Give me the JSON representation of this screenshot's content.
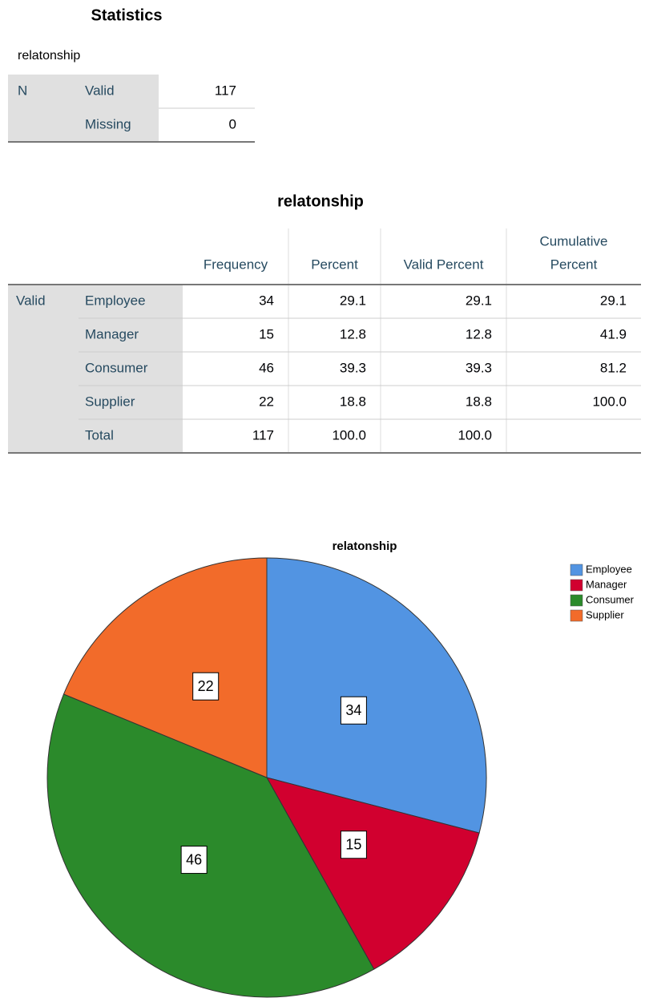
{
  "statistics": {
    "title": "Statistics",
    "variable": "relatonship",
    "row_header": "N",
    "rows": [
      {
        "label": "Valid",
        "value": "117"
      },
      {
        "label": "Missing",
        "value": "0"
      }
    ]
  },
  "frequency_table": {
    "title": "relatonship",
    "group": "Valid",
    "columns": [
      [
        "Frequency"
      ],
      [
        "Percent"
      ],
      [
        "Valid Percent"
      ],
      [
        "Cumulative",
        "Percent"
      ]
    ],
    "rows": [
      [
        "Employee",
        "34",
        "29.1",
        "29.1",
        "29.1"
      ],
      [
        "Manager",
        "15",
        "12.8",
        "12.8",
        "41.9"
      ],
      [
        "Consumer",
        "46",
        "39.3",
        "39.3",
        "81.2"
      ],
      [
        "Supplier",
        "22",
        "18.8",
        "18.8",
        "100.0"
      ],
      [
        "Total",
        "117",
        "100.0",
        "100.0"
      ]
    ]
  },
  "chart_data": {
    "type": "pie",
    "title": "relatonship",
    "categories": [
      "Employee",
      "Manager",
      "Consumer",
      "Supplier"
    ],
    "values": [
      34,
      15,
      46,
      22
    ],
    "colors": [
      "#5294e2",
      "#d1002f",
      "#2b8a2b",
      "#f26b2a"
    ],
    "legend": "right"
  }
}
